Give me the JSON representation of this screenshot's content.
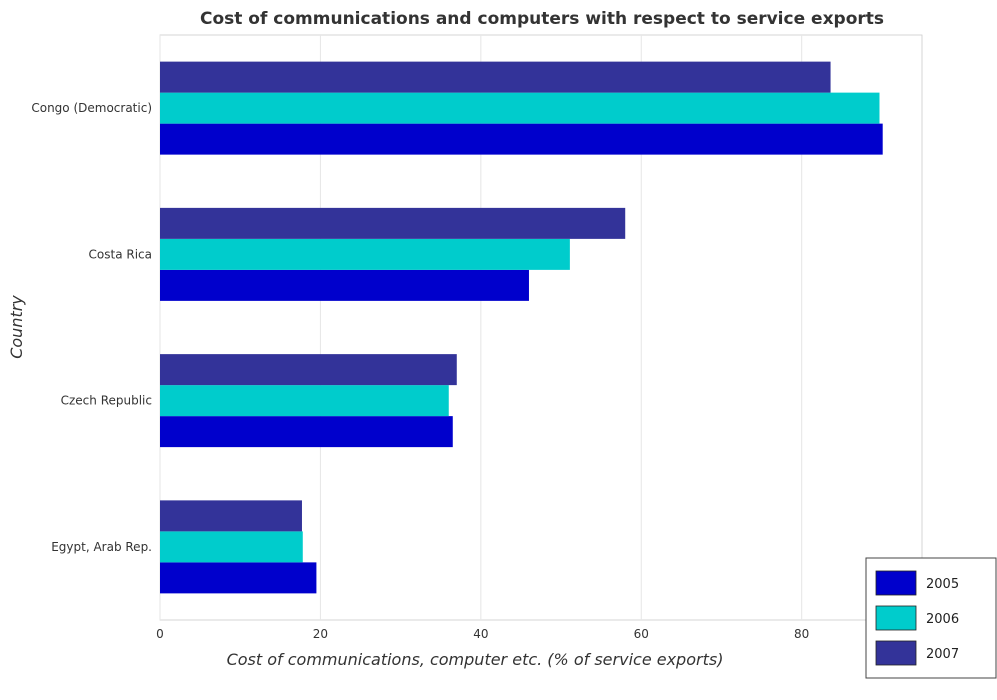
{
  "chart_data": {
    "type": "bar",
    "orientation": "horizontal",
    "title": "Cost of communications and computers with respect to service exports",
    "xlabel": "Cost of communications, computer etc. (% of service exports)",
    "ylabel": "Country",
    "categories": [
      "Congo (Democratic)",
      "Costa Rica",
      "Czech Republic",
      "Egypt, Arab Rep."
    ],
    "series": [
      {
        "name": "2005",
        "color": "#0000cc",
        "values": [
          90.1,
          46.0,
          36.5,
          19.5
        ]
      },
      {
        "name": "2006",
        "color": "#00cccc",
        "values": [
          89.7,
          51.1,
          36.0,
          17.8
        ]
      },
      {
        "name": "2007",
        "color": "#333399",
        "values": [
          83.6,
          58.0,
          37.0,
          17.7
        ]
      }
    ],
    "xlim": [
      0,
      95
    ],
    "xticks": [
      0,
      20,
      40,
      60,
      80
    ],
    "xtick_labels": [
      "0",
      "20",
      "40",
      "60",
      "80"
    ],
    "grid": true,
    "legend_position": "bottom-right"
  }
}
